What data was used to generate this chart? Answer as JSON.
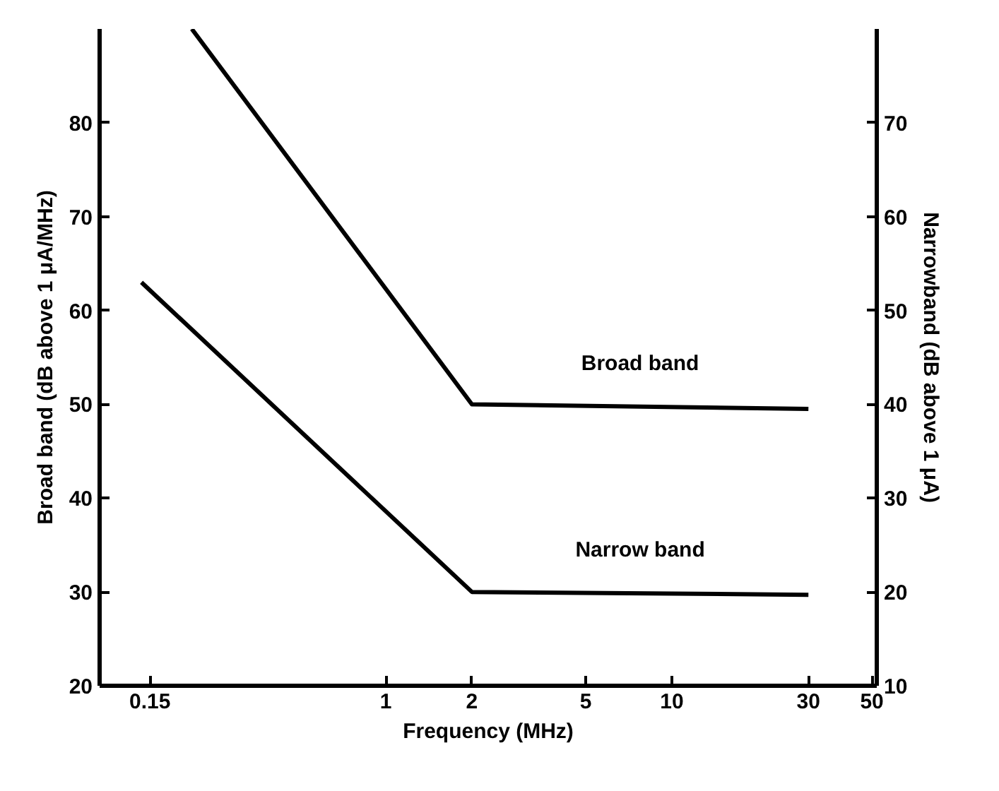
{
  "chart_data": {
    "type": "line",
    "xlabel": "Frequency (MHz)",
    "ylabel": "Broad band (dB above 1 μA/MHz)",
    "y2label": "Narrowband (dB above 1 μA)",
    "log": "x",
    "xlim": [
      0.1,
      52
    ],
    "xticks": [
      0.15,
      1,
      2,
      5,
      10,
      30,
      50
    ],
    "ylim": [
      20,
      90
    ],
    "yticks": [
      20,
      30,
      40,
      50,
      60,
      70,
      80
    ],
    "y2lim": [
      10,
      80
    ],
    "y2ticks": [
      10,
      20,
      30,
      40,
      50,
      60,
      70
    ],
    "grid": false,
    "marker": "none",
    "line_style": "solid",
    "series": [
      {
        "name": "Broad band",
        "color": "#000000",
        "x": [
          0.21,
          2,
          30
        ],
        "values": [
          90,
          50,
          49.5
        ]
      },
      {
        "name": "Narrow band",
        "color": "#000000",
        "axis": "y2",
        "x": [
          0.14,
          2,
          30
        ],
        "values": [
          53,
          20,
          19.7
        ]
      }
    ]
  }
}
